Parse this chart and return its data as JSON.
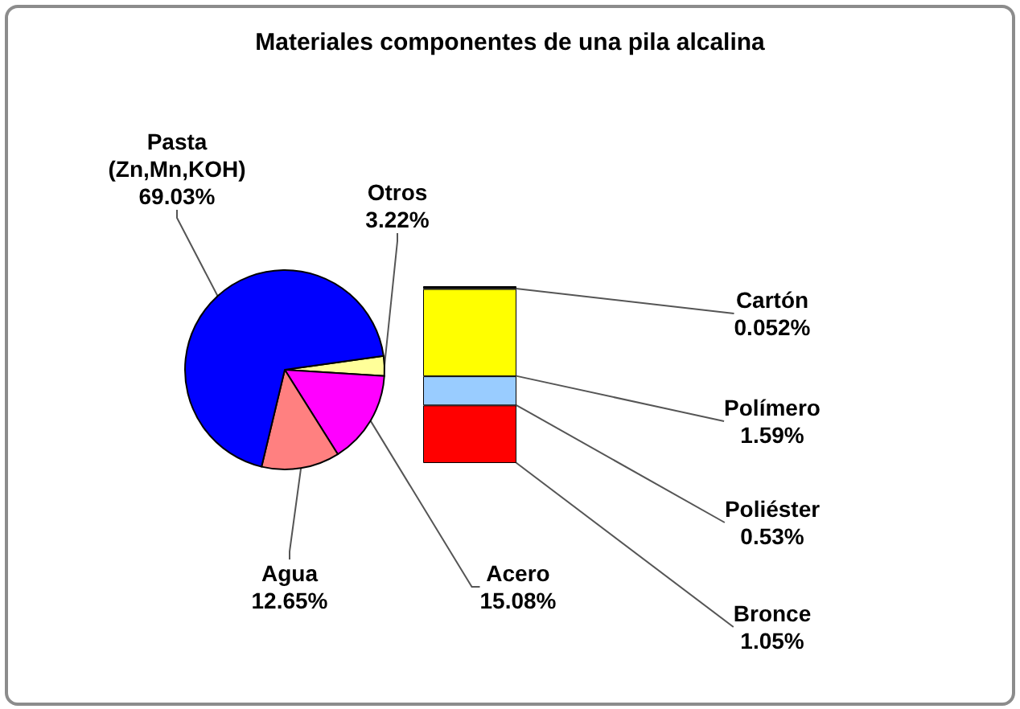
{
  "chart_data": [
    {
      "type": "pie",
      "title": "Materiales componentes de una pila alcalina",
      "categories": [
        "Otros",
        "Acero",
        "Agua",
        "Pasta\n(Zn,Mn,KOH)"
      ],
      "values": [
        3.22,
        15.08,
        12.65,
        69.03
      ],
      "value_labels": [
        "3.22%",
        "15.08%",
        "12.65%",
        "69.03%"
      ],
      "colors": [
        "#ffff99",
        "#ff00ff",
        "#ff8080",
        "#0000ff"
      ]
    },
    {
      "type": "bar",
      "stacked": true,
      "categories": [
        null
      ],
      "series": [
        {
          "name": "Bronce",
          "color": "#ff0000",
          "values": [
            1.05
          ],
          "value_labels": [
            "1.05%"
          ]
        },
        {
          "name": "Poliéster",
          "color": "#99ccff",
          "values": [
            0.53
          ],
          "value_labels": [
            "0.53%"
          ]
        },
        {
          "name": "Polímero",
          "color": "#ffff00",
          "values": [
            1.59
          ],
          "value_labels": [
            "1.59%"
          ]
        },
        {
          "name": "Cartón",
          "color": "#000000",
          "values": [
            0.052
          ],
          "value_labels": [
            "0.052%"
          ]
        }
      ]
    }
  ]
}
